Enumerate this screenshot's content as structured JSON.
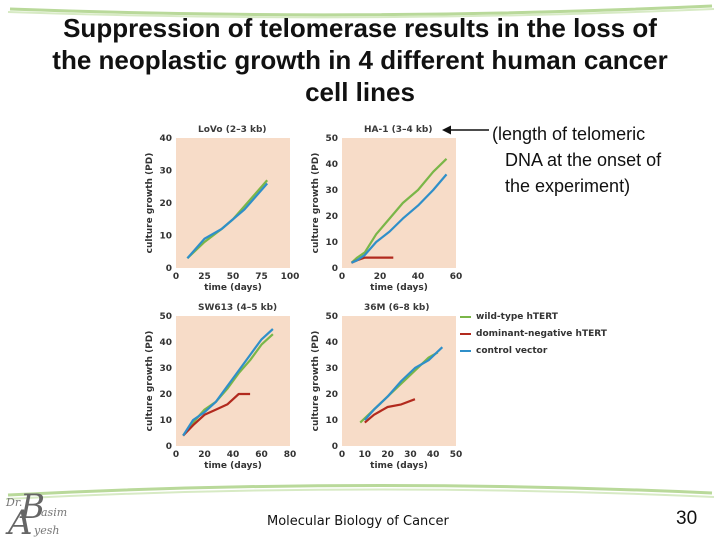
{
  "title": {
    "line1": "Suppression of telomerase results in the loss of",
    "line2": "the neoplastic growth in 4 different human cancer",
    "line3": "cell lines"
  },
  "note": {
    "line1": "(length of telomeric",
    "line2": "DNA at the onset of",
    "line3": "the experiment)"
  },
  "legend": {
    "items": [
      {
        "label": "wild-type hTERT",
        "color": "#7ab648"
      },
      {
        "label": "dominant-negative hTERT",
        "color": "#b22a1e"
      },
      {
        "label": "control vector",
        "color": "#2f8fc9"
      }
    ]
  },
  "footer": {
    "course": "Molecular Biology of Cancer",
    "page": "30",
    "logo_small1": "Dr.",
    "logo_big1": "B",
    "logo_small2": "asim",
    "logo_big2": "A",
    "logo_small3": "yesh"
  },
  "chart_data": [
    {
      "type": "line",
      "title": "LoVo (2–3 kb)",
      "xlabel": "time (days)",
      "ylabel": "culture growth (PD)",
      "xlim": [
        0,
        100
      ],
      "ylim": [
        0,
        40
      ],
      "xticks": [
        0,
        25,
        50,
        75,
        100
      ],
      "yticks": [
        0,
        10,
        20,
        30,
        40
      ],
      "series": [
        {
          "name": "wild-type hTERT",
          "color": "#7ab648",
          "x": [
            10,
            25,
            40,
            50,
            60,
            70,
            80
          ],
          "y": [
            3,
            8,
            12,
            15,
            19,
            23,
            27
          ]
        },
        {
          "name": "control vector",
          "color": "#2f8fc9",
          "x": [
            10,
            25,
            40,
            50,
            60,
            70,
            80
          ],
          "y": [
            3,
            9,
            12,
            15,
            18,
            22,
            26
          ]
        }
      ]
    },
    {
      "type": "line",
      "title": "HA-1 (3–4 kb)",
      "xlabel": "time (days)",
      "ylabel": "culture growth (PD)",
      "xlim": [
        0,
        60
      ],
      "ylim": [
        0,
        50
      ],
      "xticks": [
        0,
        20,
        40,
        60
      ],
      "yticks": [
        0,
        10,
        20,
        30,
        40,
        50
      ],
      "series": [
        {
          "name": "wild-type hTERT",
          "color": "#7ab648",
          "x": [
            5,
            8,
            12,
            18,
            25,
            32,
            40,
            48,
            55
          ],
          "y": [
            2,
            4,
            6,
            13,
            19,
            25,
            30,
            37,
            42
          ]
        },
        {
          "name": "dominant-negative hTERT",
          "color": "#b22a1e",
          "x": [
            5,
            8,
            12,
            20,
            27
          ],
          "y": [
            2,
            3,
            4,
            4,
            4
          ]
        },
        {
          "name": "control vector",
          "color": "#2f8fc9",
          "x": [
            5,
            8,
            12,
            18,
            25,
            32,
            40,
            48,
            55
          ],
          "y": [
            2,
            3,
            5,
            10,
            14,
            19,
            24,
            30,
            36
          ]
        }
      ]
    },
    {
      "type": "line",
      "title": "SW613 (4–5 kb)",
      "xlabel": "time (days)",
      "ylabel": "culture growth (PD)",
      "xlim": [
        0,
        80
      ],
      "ylim": [
        0,
        50
      ],
      "xticks": [
        0,
        20,
        40,
        60,
        80
      ],
      "yticks": [
        0,
        10,
        20,
        30,
        40,
        50
      ],
      "series": [
        {
          "name": "wild-type hTERT",
          "color": "#7ab648",
          "x": [
            5,
            12,
            20,
            28,
            36,
            44,
            52,
            60,
            68
          ],
          "y": [
            4,
            9,
            14,
            17,
            22,
            28,
            33,
            39,
            43
          ]
        },
        {
          "name": "dominant-negative hTERT",
          "color": "#b22a1e",
          "x": [
            5,
            12,
            20,
            28,
            36,
            44,
            52
          ],
          "y": [
            4,
            8,
            12,
            14,
            16,
            20,
            20
          ]
        },
        {
          "name": "control vector",
          "color": "#2f8fc9",
          "x": [
            5,
            12,
            20,
            28,
            36,
            44,
            52,
            60,
            68
          ],
          "y": [
            4,
            10,
            13,
            17,
            23,
            29,
            35,
            41,
            45
          ]
        }
      ]
    },
    {
      "type": "line",
      "title": "36M (6–8 kb)",
      "xlabel": "time (days)",
      "ylabel": "culture growth (PD)",
      "xlim": [
        0,
        50
      ],
      "ylim": [
        0,
        50
      ],
      "xticks": [
        0,
        10,
        20,
        30,
        40,
        50
      ],
      "yticks": [
        0,
        10,
        20,
        30,
        40,
        50
      ],
      "series": [
        {
          "name": "wild-type hTERT",
          "color": "#7ab648",
          "x": [
            8,
            14,
            20,
            26,
            32,
            38,
            42
          ],
          "y": [
            9,
            14,
            19,
            24,
            29,
            34,
            36
          ]
        },
        {
          "name": "dominant-negative hTERT",
          "color": "#b22a1e",
          "x": [
            10,
            14,
            20,
            26,
            32
          ],
          "y": [
            9,
            12,
            15,
            16,
            18
          ]
        },
        {
          "name": "control vector",
          "color": "#2f8fc9",
          "x": [
            10,
            14,
            20,
            26,
            32,
            38,
            44
          ],
          "y": [
            10,
            14,
            19,
            25,
            30,
            33,
            38
          ]
        }
      ]
    }
  ]
}
